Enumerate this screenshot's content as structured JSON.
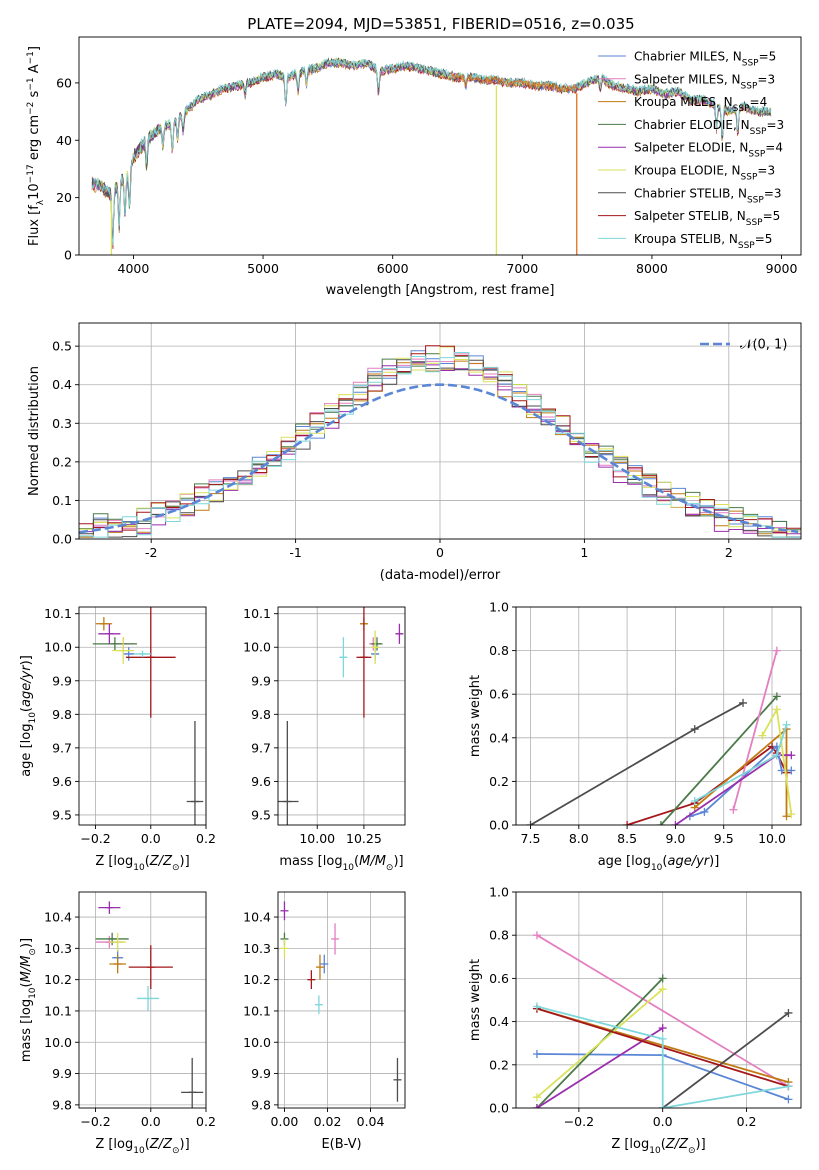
{
  "figure_title": "PLATE=2094, MJD=53851, FIBERID=0516, z=0.035",
  "colors": {
    "Chabrier MILES": "#5b86d6",
    "Salpeter MILES": "#e47fc1",
    "Kroupa MILES": "#c07a12",
    "Chabrier ELODIE": "#4a7a47",
    "Salpeter ELODIE": "#9a2fae",
    "Kroupa ELODIE": "#d9e25a",
    "Chabrier STELIB": "#4d4d4d",
    "Salpeter STELIB": "#a3171a",
    "Kroupa STELIB": "#7ed7db",
    "extra_orange": "#e0701e",
    "normal_curve": "#5b86d6"
  },
  "chart_data": [
    {
      "id": "spectrum",
      "type": "line",
      "title": "PLATE=2094, MJD=53851, FIBERID=0516, z=0.035",
      "xlabel": "wavelength [Angstrom, rest frame]",
      "ylabel": "Flux [f_λ 10^-17 erg cm^-2 s^-1 A^-1]",
      "xlim": [
        3580,
        9150
      ],
      "ylim": [
        0,
        76
      ],
      "xticks": [
        4000,
        5000,
        6000,
        7000,
        8000,
        9000
      ],
      "yticks": [
        0,
        20,
        40,
        60
      ],
      "grid": false,
      "legend_position": "top-right",
      "legend": [
        "Chabrier MILES, N_SSP=5",
        "Salpeter MILES, N_SSP=3",
        "Kroupa MILES, N_SSP=4",
        "Chabrier ELODIE, N_SSP=3",
        "Salpeter ELODIE, N_SSP=4",
        "Kroupa ELODIE, N_SSP=3",
        "Chabrier STELIB, N_SSP=3",
        "Salpeter STELIB, N_SSP=5",
        "Kroupa STELIB, N_SSP=5"
      ],
      "continuum": [
        [
          3680,
          25
        ],
        [
          3750,
          24
        ],
        [
          3830,
          21
        ],
        [
          3900,
          26
        ],
        [
          3960,
          28
        ],
        [
          4000,
          34
        ],
        [
          4100,
          40
        ],
        [
          4200,
          44
        ],
        [
          4300,
          46
        ],
        [
          4400,
          50
        ],
        [
          4500,
          54
        ],
        [
          4600,
          56
        ],
        [
          4700,
          58
        ],
        [
          4800,
          59
        ],
        [
          4900,
          60
        ],
        [
          5000,
          62
        ],
        [
          5100,
          63
        ],
        [
          5200,
          62
        ],
        [
          5300,
          64
        ],
        [
          5400,
          65
        ],
        [
          5500,
          67
        ],
        [
          5600,
          67
        ],
        [
          5700,
          66
        ],
        [
          5800,
          67
        ],
        [
          5900,
          64
        ],
        [
          6000,
          65
        ],
        [
          6100,
          66
        ],
        [
          6200,
          65
        ],
        [
          6300,
          64
        ],
        [
          6400,
          63
        ],
        [
          6500,
          62
        ],
        [
          6600,
          62
        ],
        [
          6700,
          61
        ],
        [
          6800,
          61
        ],
        [
          6900,
          60
        ],
        [
          7000,
          60
        ],
        [
          7100,
          59
        ],
        [
          7200,
          59
        ],
        [
          7300,
          58
        ],
        [
          7400,
          58
        ],
        [
          7500,
          60
        ],
        [
          7600,
          62
        ],
        [
          7700,
          59
        ],
        [
          7800,
          58
        ],
        [
          7900,
          57
        ],
        [
          8000,
          58
        ],
        [
          8100,
          56
        ],
        [
          8200,
          57
        ],
        [
          8300,
          54
        ],
        [
          8400,
          54
        ],
        [
          8500,
          52
        ],
        [
          8600,
          50
        ],
        [
          8700,
          52
        ],
        [
          8800,
          50
        ],
        [
          8900,
          50
        ]
      ],
      "absorption_lines": [
        [
          3840,
          18
        ],
        [
          3890,
          15
        ],
        [
          3935,
          13
        ],
        [
          3970,
          12
        ],
        [
          4102,
          9
        ],
        [
          4227,
          7
        ],
        [
          4300,
          10
        ],
        [
          4340,
          7
        ],
        [
          4383,
          6
        ],
        [
          4861,
          4
        ],
        [
          5175,
          10
        ],
        [
          5270,
          6
        ],
        [
          5335,
          5
        ],
        [
          5890,
          8
        ],
        [
          6563,
          3
        ],
        [
          7600,
          4
        ],
        [
          8498,
          8
        ],
        [
          8542,
          11
        ],
        [
          8662,
          9
        ]
      ],
      "spikes_to_zero": [
        {
          "series": "Kroupa ELODIE",
          "x": 3830
        },
        {
          "series": "Kroupa ELODIE",
          "x": 6800
        },
        {
          "series": "extra_orange",
          "x": 7420
        }
      ]
    },
    {
      "id": "residuals",
      "type": "bar",
      "xlabel": "(data-model)/error",
      "ylabel": "Normed distribution",
      "xlim": [
        -2.5,
        2.5
      ],
      "ylim": [
        0,
        0.56
      ],
      "xticks": [
        -2,
        -1,
        0,
        1,
        2
      ],
      "yticks": [
        0.0,
        0.1,
        0.2,
        0.3,
        0.4,
        0.5
      ],
      "grid": true,
      "legend": [
        "𝒩(0, 1)"
      ],
      "legend_position": "top-right",
      "bin_width": 0.1,
      "series": [
        {
          "color_key": "Chabrier MILES",
          "shift": 0.0
        },
        {
          "color_key": "Salpeter MILES",
          "shift": 0.008
        },
        {
          "color_key": "Kroupa MILES",
          "shift": -0.006
        },
        {
          "color_key": "Chabrier ELODIE",
          "shift": 0.012
        },
        {
          "color_key": "Salpeter ELODIE",
          "shift": -0.01
        },
        {
          "color_key": "Kroupa ELODIE",
          "shift": 0.004
        },
        {
          "color_key": "Chabrier STELIB",
          "shift": -0.004
        },
        {
          "color_key": "Salpeter STELIB",
          "shift": 0.006
        },
        {
          "color_key": "Kroupa STELIB",
          "shift": -0.008
        }
      ]
    },
    {
      "id": "age_vs_Z",
      "type": "scatter",
      "xlabel": "Z [log10(Z/Z☉)]",
      "ylabel": "age [log10(age/yr)]",
      "xlim": [
        -0.26,
        0.2
      ],
      "ylim": [
        9.47,
        10.12
      ],
      "xticks": [
        -0.2,
        0.0,
        0.2
      ],
      "xticklabels": [
        "−0.2",
        "0.0",
        "0.2"
      ],
      "yticks": [
        9.5,
        9.6,
        9.7,
        9.8,
        9.9,
        10.0,
        10.1
      ],
      "grid": true,
      "points": [
        {
          "c": "Chabrier MILES",
          "x": -0.08,
          "xe": 0.02,
          "y": 9.98,
          "ye": 0.02
        },
        {
          "c": "Salpeter MILES",
          "x": -0.1,
          "xe": 0.04,
          "y": 10.01,
          "ye": 0.02
        },
        {
          "c": "Kroupa MILES",
          "x": -0.17,
          "xe": 0.03,
          "y": 10.07,
          "ye": 0.02
        },
        {
          "c": "Chabrier ELODIE",
          "x": -0.13,
          "xe": 0.08,
          "y": 10.01,
          "ye": 0.02
        },
        {
          "c": "Salpeter ELODIE",
          "x": -0.15,
          "xe": 0.04,
          "y": 10.04,
          "ye": 0.03
        },
        {
          "c": "Kroupa ELODIE",
          "x": -0.1,
          "xe": 0.04,
          "y": 9.99,
          "ye": 0.04
        },
        {
          "c": "Chabrier STELIB",
          "x": 0.16,
          "xe": 0.03,
          "y": 9.54,
          "ye": 0.24
        },
        {
          "c": "Salpeter STELIB",
          "x": 0.0,
          "xe": 0.09,
          "y": 9.97,
          "ye": 0.18
        },
        {
          "c": "Kroupa STELIB",
          "x": -0.03,
          "xe": 0.03,
          "y": 9.98,
          "ye": 0.01
        }
      ]
    },
    {
      "id": "age_vs_mass",
      "type": "scatter",
      "xlabel": "mass [log10(M/M☉)]",
      "ylabel": "",
      "xlim": [
        9.79,
        10.47
      ],
      "ylim": [
        9.47,
        10.12
      ],
      "xticks": [
        10.0,
        10.25
      ],
      "xticklabels": [
        "10.00",
        "10.25"
      ],
      "yticks": [
        9.5,
        9.6,
        9.7,
        9.8,
        9.9,
        10.0,
        10.1
      ],
      "grid": true,
      "points": [
        {
          "c": "Chabrier MILES",
          "x": 10.31,
          "xe": 0.02,
          "y": 9.98,
          "ye": 0.02
        },
        {
          "c": "Salpeter MILES",
          "x": 10.3,
          "xe": 0.02,
          "y": 10.01,
          "ye": 0.02
        },
        {
          "c": "Kroupa MILES",
          "x": 10.25,
          "xe": 0.02,
          "y": 10.07,
          "ye": 0.02
        },
        {
          "c": "Chabrier ELODIE",
          "x": 10.32,
          "xe": 0.03,
          "y": 10.01,
          "ye": 0.02
        },
        {
          "c": "Salpeter ELODIE",
          "x": 10.44,
          "xe": 0.02,
          "y": 10.04,
          "ye": 0.03
        },
        {
          "c": "Kroupa ELODIE",
          "x": 10.31,
          "xe": 0.02,
          "y": 10.0,
          "ye": 0.05
        },
        {
          "c": "Chabrier STELIB",
          "x": 9.84,
          "xe": 0.06,
          "y": 9.54,
          "ye": 0.24
        },
        {
          "c": "Salpeter STELIB",
          "x": 10.25,
          "xe": 0.04,
          "y": 9.97,
          "ye": 0.18
        },
        {
          "c": "Kroupa STELIB",
          "x": 10.14,
          "xe": 0.02,
          "y": 9.97,
          "ye": 0.06
        }
      ]
    },
    {
      "id": "mass_weight_vs_age",
      "type": "line",
      "xlabel": "age [log10(age/yr)]",
      "ylabel": "mass weight",
      "xlim": [
        7.35,
        10.3
      ],
      "ylim": [
        0,
        1.0
      ],
      "xticks": [
        7.5,
        8.0,
        8.5,
        9.0,
        9.5,
        10.0
      ],
      "yticks": [
        0.0,
        0.2,
        0.4,
        0.6,
        0.8,
        1.0
      ],
      "grid": true,
      "series": [
        {
          "c": "Chabrier STELIB",
          "points": [
            [
              7.5,
              0.0
            ],
            [
              9.2,
              0.44
            ],
            [
              9.7,
              0.56
            ]
          ]
        },
        {
          "c": "Salpeter STELIB",
          "points": [
            [
              8.5,
              0.0
            ],
            [
              9.2,
              0.1
            ],
            [
              10.0,
              0.36
            ],
            [
              10.05,
              0.33
            ],
            [
              10.15,
              0.24
            ]
          ]
        },
        {
          "c": "Chabrier ELODIE",
          "points": [
            [
              8.85,
              0.0
            ],
            [
              10.05,
              0.59
            ]
          ]
        },
        {
          "c": "Chabrier MILES",
          "points": [
            [
              9.15,
              0.04
            ],
            [
              9.3,
              0.06
            ],
            [
              10.05,
              0.36
            ],
            [
              10.1,
              0.25
            ],
            [
              10.2,
              0.25
            ]
          ]
        },
        {
          "c": "Salpeter MILES",
          "points": [
            [
              9.6,
              0.07
            ],
            [
              10.05,
              0.8
            ]
          ]
        },
        {
          "c": "Kroupa MILES",
          "points": [
            [
              9.2,
              0.08
            ],
            [
              10.15,
              0.44
            ],
            [
              10.15,
              0.04
            ]
          ]
        },
        {
          "c": "Salpeter ELODIE",
          "points": [
            [
              9.0,
              0.0
            ],
            [
              10.05,
              0.32
            ],
            [
              10.2,
              0.32
            ]
          ]
        },
        {
          "c": "Kroupa ELODIE",
          "points": [
            [
              9.9,
              0.41
            ],
            [
              10.05,
              0.53
            ],
            [
              10.2,
              0.05
            ]
          ]
        },
        {
          "c": "Kroupa STELIB",
          "points": [
            [
              9.2,
              0.11
            ],
            [
              10.05,
              0.32
            ],
            [
              10.15,
              0.46
            ]
          ]
        }
      ]
    },
    {
      "id": "mass_vs_Z",
      "type": "scatter",
      "xlabel": "Z [log10(Z/Z☉)]",
      "ylabel": "mass [log10(M/M☉)]",
      "xlim": [
        -0.26,
        0.2
      ],
      "ylim": [
        9.79,
        10.48
      ],
      "xticks": [
        -0.2,
        0.0,
        0.2
      ],
      "xticklabels": [
        "−0.2",
        "0.0",
        "0.2"
      ],
      "yticks": [
        9.8,
        9.9,
        10.0,
        10.1,
        10.2,
        10.3,
        10.4
      ],
      "grid": true,
      "points": [
        {
          "c": "Chabrier MILES",
          "x": -0.12,
          "xe": 0.02,
          "y": 10.27,
          "ye": 0.03
        },
        {
          "c": "Salpeter MILES",
          "x": -0.15,
          "xe": 0.05,
          "y": 10.32,
          "ye": 0.02
        },
        {
          "c": "Kroupa MILES",
          "x": -0.12,
          "xe": 0.03,
          "y": 10.25,
          "ye": 0.03
        },
        {
          "c": "Chabrier ELODIE",
          "x": -0.14,
          "xe": 0.06,
          "y": 10.33,
          "ye": 0.02
        },
        {
          "c": "Salpeter ELODIE",
          "x": -0.15,
          "xe": 0.04,
          "y": 10.43,
          "ye": 0.02
        },
        {
          "c": "Kroupa ELODIE",
          "x": -0.12,
          "xe": 0.03,
          "y": 10.32,
          "ye": 0.03
        },
        {
          "c": "Chabrier STELIB",
          "x": 0.15,
          "xe": 0.04,
          "y": 9.84,
          "ye": 0.11
        },
        {
          "c": "Salpeter STELIB",
          "x": 0.0,
          "xe": 0.08,
          "y": 10.24,
          "ye": 0.07
        },
        {
          "c": "Kroupa STELIB",
          "x": -0.01,
          "xe": 0.04,
          "y": 10.14,
          "ye": 0.04
        }
      ]
    },
    {
      "id": "mass_vs_EBV",
      "type": "scatter",
      "xlabel": "E(B-V)",
      "ylabel": "",
      "xlim": [
        -0.003,
        0.056
      ],
      "ylim": [
        9.79,
        10.48
      ],
      "xticks": [
        0.0,
        0.02,
        0.04
      ],
      "xticklabels": [
        "0.00",
        "0.02",
        "0.04"
      ],
      "yticks": [
        9.8,
        9.9,
        10.0,
        10.1,
        10.2,
        10.3,
        10.4
      ],
      "grid": true,
      "points": [
        {
          "c": "Chabrier MILES",
          "x": 0.0185,
          "xe": 0,
          "y": 10.25,
          "ye": 0.03
        },
        {
          "c": "Salpeter MILES",
          "x": 0.0235,
          "xe": 0,
          "y": 10.33,
          "ye": 0.05
        },
        {
          "c": "Kroupa MILES",
          "x": 0.0165,
          "xe": 0,
          "y": 10.24,
          "ye": 0.04
        },
        {
          "c": "Chabrier ELODIE",
          "x": 0.0,
          "xe": 0,
          "y": 10.33,
          "ye": 0.02
        },
        {
          "c": "Salpeter ELODIE",
          "x": 0.0,
          "xe": 0,
          "y": 10.42,
          "ye": 0.03
        },
        {
          "c": "Kroupa ELODIE",
          "x": 0.0,
          "xe": 0,
          "y": 10.3,
          "ye": 0.03
        },
        {
          "c": "Chabrier STELIB",
          "x": 0.0525,
          "xe": 0,
          "y": 9.88,
          "ye": 0.07
        },
        {
          "c": "Salpeter STELIB",
          "x": 0.0125,
          "xe": 0,
          "y": 10.2,
          "ye": 0.03
        },
        {
          "c": "Kroupa STELIB",
          "x": 0.016,
          "xe": 0,
          "y": 10.12,
          "ye": 0.03
        }
      ]
    },
    {
      "id": "mass_weight_vs_Z",
      "type": "line",
      "xlabel": "Z [log10(Z/Z☉)]",
      "ylabel": "mass weight",
      "xlim": [
        -0.35,
        0.33
      ],
      "ylim": [
        0,
        1.0
      ],
      "xticks": [
        -0.2,
        0.0,
        0.2
      ],
      "xticklabels": [
        "−0.2",
        "0.0",
        "0.2"
      ],
      "yticks": [
        0.0,
        0.2,
        0.4,
        0.6,
        0.8,
        1.0
      ],
      "grid": true,
      "series": [
        {
          "c": "Salpeter MILES",
          "points": [
            [
              -0.3,
              0.8
            ],
            [
              0.3,
              0.1
            ]
          ]
        },
        {
          "c": "Chabrier MILES",
          "points": [
            [
              -0.3,
              0.25
            ],
            [
              0.0,
              0.245
            ],
            [
              0.3,
              0.04
            ]
          ]
        },
        {
          "c": "Kroupa MILES",
          "points": [
            [
              -0.3,
              0.46
            ],
            [
              0.3,
              0.12
            ]
          ]
        },
        {
          "c": "Chabrier ELODIE",
          "points": [
            [
              -0.3,
              0.0
            ],
            [
              0.0,
              0.6
            ]
          ]
        },
        {
          "c": "Salpeter ELODIE",
          "points": [
            [
              -0.3,
              0.0
            ],
            [
              0.0,
              0.37
            ]
          ]
        },
        {
          "c": "Kroupa ELODIE",
          "points": [
            [
              -0.3,
              0.05
            ],
            [
              0.0,
              0.55
            ]
          ]
        },
        {
          "c": "Chabrier STELIB",
          "points": [
            [
              0.0,
              0.0
            ],
            [
              0.3,
              0.44
            ]
          ]
        },
        {
          "c": "Salpeter STELIB",
          "points": [
            [
              -0.3,
              0.46
            ],
            [
              0.3,
              0.1
            ]
          ]
        },
        {
          "c": "Kroupa STELIB",
          "points": [
            [
              -0.3,
              0.47
            ],
            [
              0.0,
              0.32
            ],
            [
              0.0,
              0.0
            ],
            [
              0.3,
              0.1
            ]
          ]
        }
      ]
    }
  ]
}
